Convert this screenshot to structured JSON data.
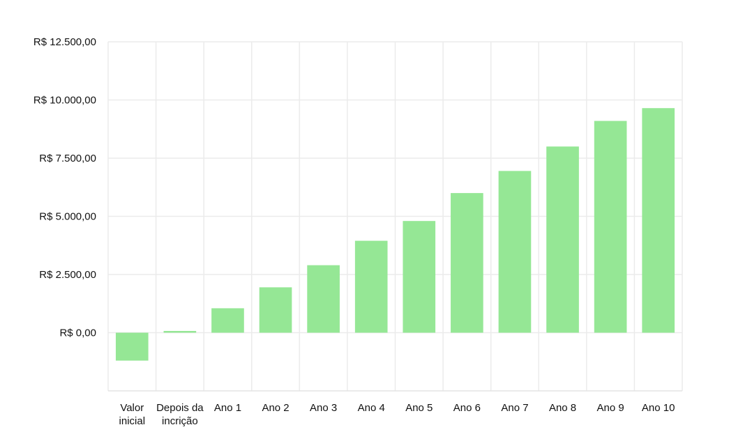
{
  "chart_data": {
    "type": "bar",
    "title": "",
    "xlabel": "",
    "ylabel": "",
    "categories": [
      [
        "Valor",
        "inicial"
      ],
      [
        "Depois da",
        "incrição"
      ],
      [
        "Ano 1"
      ],
      [
        "Ano 2"
      ],
      [
        "Ano 3"
      ],
      [
        "Ano 4"
      ],
      [
        "Ano 5"
      ],
      [
        "Ano 6"
      ],
      [
        "Ano 7"
      ],
      [
        "Ano 8"
      ],
      [
        "Ano 9"
      ],
      [
        "Ano 10"
      ]
    ],
    "values": [
      -1200,
      75,
      1050,
      1950,
      2900,
      3950,
      4800,
      6000,
      6950,
      8000,
      9100,
      9650
    ],
    "ylim": [
      -2500,
      12500
    ],
    "y_ticks": [
      0,
      2500,
      5000,
      7500,
      10000,
      12500
    ],
    "y_tick_labels": [
      "R$  0,00",
      "R$ 2.500,00",
      "R$ 5.000,00",
      "R$ 7.500,00",
      "R$ 10.000,00",
      "R$ 12.500,00"
    ],
    "grid": true,
    "legend": "none",
    "colors": {
      "bar": "#95e795",
      "grid": "#ebebeb",
      "text": "#111111"
    }
  }
}
